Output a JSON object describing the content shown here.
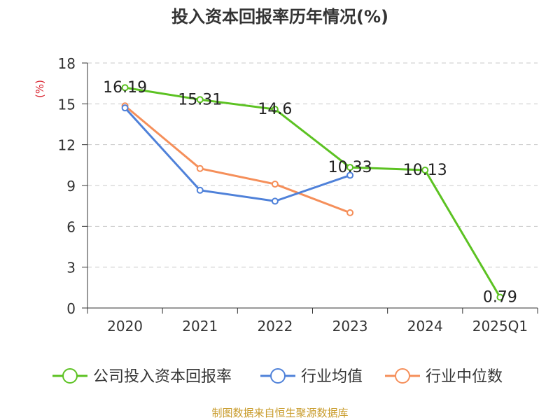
{
  "chart_data": {
    "type": "line",
    "title": "投入资本回报率历年情况(%)",
    "ylabel": "(%)",
    "categories": [
      "2020",
      "2021",
      "2022",
      "2023",
      "2024",
      "2025Q1"
    ],
    "yticks": [
      0,
      3,
      6,
      9,
      12,
      15,
      18
    ],
    "ylim": [
      0,
      18
    ],
    "grid": true,
    "legend_position": "bottom",
    "series": [
      {
        "name": "公司投入资本回报率",
        "color": "#5cc222",
        "values": [
          16.19,
          15.31,
          14.6,
          10.33,
          10.13,
          0.79
        ],
        "labels": [
          "16.19",
          "15.31",
          "14.6",
          "10.33",
          "10.13",
          "0.79"
        ]
      },
      {
        "name": "行业均值",
        "color": "#4f81d9",
        "values": [
          14.7,
          8.65,
          7.85,
          9.75,
          null,
          null
        ]
      },
      {
        "name": "行业中位数",
        "color": "#f58f5a",
        "values": [
          14.85,
          10.25,
          9.1,
          7.0,
          null,
          null
        ]
      }
    ]
  },
  "footer": {
    "source": "制图数据来自恒生聚源数据库"
  }
}
